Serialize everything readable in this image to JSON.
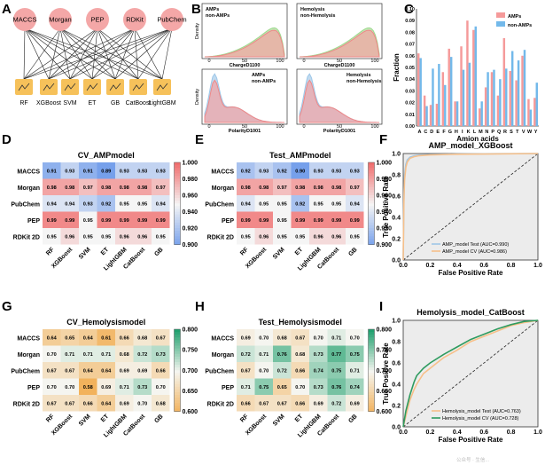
{
  "panels": {
    "A": {
      "label": "A",
      "features": [
        "MACCS",
        "Morgan",
        "PEP",
        "RDKit",
        "PubChem"
      ],
      "models": [
        "RF",
        "XGBoost",
        "SVM",
        "ET",
        "GB",
        "CatBoost",
        "LightGBM"
      ]
    },
    "B": {
      "label": "B",
      "sub": [
        {
          "title_lines": [
            "AMPs",
            "non-AMPs"
          ],
          "xlabel": "ChargeD1100",
          "ylabel": "Density",
          "legend_pos": "top-left",
          "colors": [
            "#f4a3a3",
            "#9fd88e"
          ]
        },
        {
          "title_lines": [
            "Hemolysis",
            "non-Hemolysis"
          ],
          "xlabel": "ChargeD1100",
          "ylabel": "",
          "legend_pos": "top-left",
          "colors": [
            "#f4a3a3",
            "#9fd88e"
          ]
        },
        {
          "title_lines": [
            "AMPs",
            "non-AMPs"
          ],
          "xlabel": "PolarityD1001",
          "ylabel": "Density",
          "legend_pos": "top-right",
          "colors": [
            "#f4a3a3",
            "#9ec7e8"
          ]
        },
        {
          "title_lines": [
            "Hemolysis",
            "non-Hemolysis"
          ],
          "xlabel": "PolarityD1001",
          "ylabel": "",
          "legend_pos": "top-right",
          "colors": [
            "#f4a3a3",
            "#9ec7e8"
          ]
        }
      ],
      "xticks": [
        "0",
        "50",
        "100"
      ]
    },
    "C": {
      "label": "C",
      "xlabel": "Amion acids",
      "ylabel": "Fraction"
    },
    "D": {
      "label": "D"
    },
    "E": {
      "label": "E"
    },
    "F": {
      "label": "F"
    },
    "G": {
      "label": "G"
    },
    "H": {
      "label": "H"
    },
    "I": {
      "label": "I"
    }
  },
  "watermark": "公众号 · 生信...",
  "chart_data": [
    {
      "id": "C",
      "type": "bar",
      "title": "",
      "xlabel": "Amion acids",
      "ylabel": "Fraction",
      "ylim": [
        0,
        0.1
      ],
      "yticks": [
        "0.00",
        "0.01",
        "0.02",
        "0.03",
        "0.04",
        "0.05",
        "0.06",
        "0.07",
        "0.08",
        "0.09",
        "0.10"
      ],
      "legend": "top-right",
      "categories": [
        "A",
        "C",
        "D",
        "E",
        "F",
        "G",
        "H",
        "I",
        "K",
        "L",
        "M",
        "N",
        "P",
        "Q",
        "R",
        "S",
        "T",
        "V",
        "W",
        "Y"
      ],
      "series": [
        {
          "name": "AMPs",
          "color": "#f59a9a",
          "values": [
            0.062,
            0.026,
            0.018,
            0.019,
            0.046,
            0.066,
            0.021,
            0.068,
            0.09,
            0.082,
            0.015,
            0.033,
            0.046,
            0.026,
            0.075,
            0.047,
            0.039,
            0.06,
            0.023,
            0.024
          ]
        },
        {
          "name": "non-AMPs",
          "color": "#73b9ea",
          "values": [
            0.058,
            0.017,
            0.049,
            0.053,
            0.035,
            0.059,
            0.021,
            0.048,
            0.054,
            0.085,
            0.021,
            0.046,
            0.048,
            0.04,
            0.049,
            0.064,
            0.056,
            0.065,
            0.014,
            0.037
          ]
        }
      ]
    },
    {
      "id": "D",
      "type": "heatmap",
      "title": "CV_AMPmodel",
      "rows": [
        "MACCS",
        "Morgan",
        "PubChem",
        "PEP",
        "RDKit 2D"
      ],
      "cols": [
        "RF",
        "XGBoost",
        "SVM",
        "ET",
        "LightGBM",
        "CatBoost",
        "GB"
      ],
      "values": [
        [
          0.91,
          0.93,
          0.91,
          0.89,
          0.93,
          0.93,
          0.93
        ],
        [
          0.98,
          0.98,
          0.97,
          0.98,
          0.98,
          0.98,
          0.97
        ],
        [
          0.94,
          0.94,
          0.93,
          0.92,
          0.95,
          0.95,
          0.94
        ],
        [
          0.99,
          0.99,
          0.95,
          0.99,
          0.99,
          0.99,
          0.99
        ],
        [
          0.95,
          0.96,
          0.95,
          0.95,
          0.96,
          0.96,
          0.95
        ]
      ],
      "cbar": {
        "min": 0.9,
        "max": 1.0,
        "ticks": [
          "1.000",
          "0.980",
          "0.960",
          "0.940",
          "0.920",
          "0.900"
        ]
      },
      "palette": "coolwarm"
    },
    {
      "id": "E",
      "type": "heatmap",
      "title": "Test_AMPmodel",
      "rows": [
        "MACCS",
        "Morgan",
        "PubChem",
        "PEP",
        "RDKit 2D"
      ],
      "cols": [
        "RF",
        "XGBoost",
        "SVM",
        "ET",
        "LightGBM",
        "CatBoost",
        "GB"
      ],
      "values": [
        [
          0.92,
          0.93,
          0.92,
          0.9,
          0.93,
          0.93,
          0.93
        ],
        [
          0.98,
          0.98,
          0.97,
          0.98,
          0.98,
          0.98,
          0.97
        ],
        [
          0.94,
          0.95,
          0.95,
          0.92,
          0.95,
          0.95,
          0.94
        ],
        [
          0.99,
          0.99,
          0.95,
          0.99,
          0.99,
          0.99,
          0.99
        ],
        [
          0.95,
          0.96,
          0.95,
          0.95,
          0.96,
          0.96,
          0.95
        ]
      ],
      "cbar": {
        "min": 0.9,
        "max": 1.0,
        "ticks": [
          "1.000",
          "0.980",
          "0.960",
          "0.940",
          "0.920",
          "0.900"
        ]
      },
      "palette": "coolwarm"
    },
    {
      "id": "F",
      "type": "line",
      "title": "AMP_model_XGBoost",
      "xlabel": "False Positive Rate",
      "ylabel": "True Positive Rate",
      "xlim": [
        0,
        1
      ],
      "ylim": [
        0,
        1
      ],
      "ticks": [
        "0.0",
        "0.2",
        "0.4",
        "0.6",
        "0.8",
        "1.0"
      ],
      "legend": "bottom-right",
      "series": [
        {
          "name": "AMP_model Test (AUC=0.990)",
          "color": "#9ec7e8",
          "x": [
            0,
            0.005,
            0.01,
            0.02,
            0.03,
            0.05,
            0.08,
            0.12,
            0.2,
            0.4,
            0.7,
            1
          ],
          "y": [
            0,
            0.6,
            0.8,
            0.9,
            0.94,
            0.965,
            0.978,
            0.985,
            0.99,
            0.995,
            0.998,
            1
          ]
        },
        {
          "name": "AMP_model CV (AUC=0.986)",
          "color": "#f7c08a",
          "x": [
            0,
            0.005,
            0.01,
            0.02,
            0.03,
            0.05,
            0.08,
            0.12,
            0.2,
            0.4,
            0.7,
            1
          ],
          "y": [
            0,
            0.55,
            0.75,
            0.87,
            0.92,
            0.955,
            0.97,
            0.98,
            0.987,
            0.993,
            0.997,
            1
          ]
        }
      ]
    },
    {
      "id": "G",
      "type": "heatmap",
      "title": "CV_Hemolysismodel",
      "rows": [
        "MACCS",
        "Morgan",
        "PubChem",
        "PEP",
        "RDKit 2D"
      ],
      "cols": [
        "RF",
        "XGBoost",
        "SVM",
        "ET",
        "LightGBM",
        "CatBoost",
        "GB"
      ],
      "values": [
        [
          0.64,
          0.65,
          0.64,
          0.61,
          0.66,
          0.68,
          0.67
        ],
        [
          0.7,
          0.71,
          0.71,
          0.71,
          0.68,
          0.72,
          0.73
        ],
        [
          0.67,
          0.67,
          0.64,
          0.64,
          0.69,
          0.69,
          0.66
        ],
        [
          0.7,
          0.7,
          0.58,
          0.69,
          0.71,
          0.73,
          0.7
        ],
        [
          0.67,
          0.67,
          0.66,
          0.64,
          0.69,
          0.7,
          0.68
        ]
      ],
      "cbar": {
        "min": 0.6,
        "max": 0.8,
        "ticks": [
          "0.800",
          "0.750",
          "0.700",
          "0.650",
          "0.600"
        ]
      },
      "palette": "orange-green"
    },
    {
      "id": "H",
      "type": "heatmap",
      "title": "Test_Hemolysismodel",
      "rows": [
        "MACCS",
        "Morgan",
        "PubChem",
        "PEP",
        "RDKit 2D"
      ],
      "cols": [
        "RF",
        "XGBoost",
        "SVM",
        "ET",
        "LightGBM",
        "CatBoost",
        "GB"
      ],
      "values": [
        [
          0.69,
          0.7,
          0.68,
          0.67,
          0.7,
          0.71,
          0.7
        ],
        [
          0.72,
          0.71,
          0.76,
          0.68,
          0.73,
          0.77,
          0.75
        ],
        [
          0.67,
          0.7,
          0.72,
          0.66,
          0.74,
          0.75,
          0.71
        ],
        [
          0.71,
          0.75,
          0.65,
          0.7,
          0.73,
          0.76,
          0.74
        ],
        [
          0.66,
          0.67,
          0.67,
          0.66,
          0.69,
          0.72,
          0.69
        ]
      ],
      "cbar": {
        "min": 0.6,
        "max": 0.8,
        "ticks": [
          "0.800",
          "0.750",
          "0.700",
          "0.650",
          "0.600"
        ]
      },
      "palette": "orange-green"
    },
    {
      "id": "I",
      "type": "line",
      "title": "Hemolysis_model_CatBoost",
      "xlabel": "False Positive Rate",
      "ylabel": "True Positive Rate",
      "xlim": [
        0,
        1
      ],
      "ylim": [
        0,
        1
      ],
      "ticks": [
        "0.0",
        "0.2",
        "0.4",
        "0.6",
        "0.8",
        "1.0"
      ],
      "legend": "bottom-right",
      "series": [
        {
          "name": "Hemolysis_model Test (AUC=0.763)",
          "color": "#f7c08a",
          "x": [
            0,
            0.02,
            0.05,
            0.08,
            0.1,
            0.15,
            0.2,
            0.3,
            0.4,
            0.5,
            0.6,
            0.7,
            0.8,
            0.9,
            1
          ],
          "y": [
            0,
            0.1,
            0.25,
            0.35,
            0.4,
            0.5,
            0.55,
            0.65,
            0.72,
            0.8,
            0.85,
            0.9,
            0.95,
            0.98,
            1
          ]
        },
        {
          "name": "Hemolysis_model CV (AUC=0.728)",
          "color": "#2e9b5f",
          "x": [
            0,
            0.02,
            0.05,
            0.08,
            0.1,
            0.15,
            0.2,
            0.3,
            0.4,
            0.5,
            0.6,
            0.7,
            0.8,
            0.9,
            1
          ],
          "y": [
            0,
            0.15,
            0.3,
            0.42,
            0.48,
            0.55,
            0.6,
            0.68,
            0.75,
            0.82,
            0.87,
            0.92,
            0.96,
            0.99,
            1
          ]
        }
      ]
    }
  ]
}
